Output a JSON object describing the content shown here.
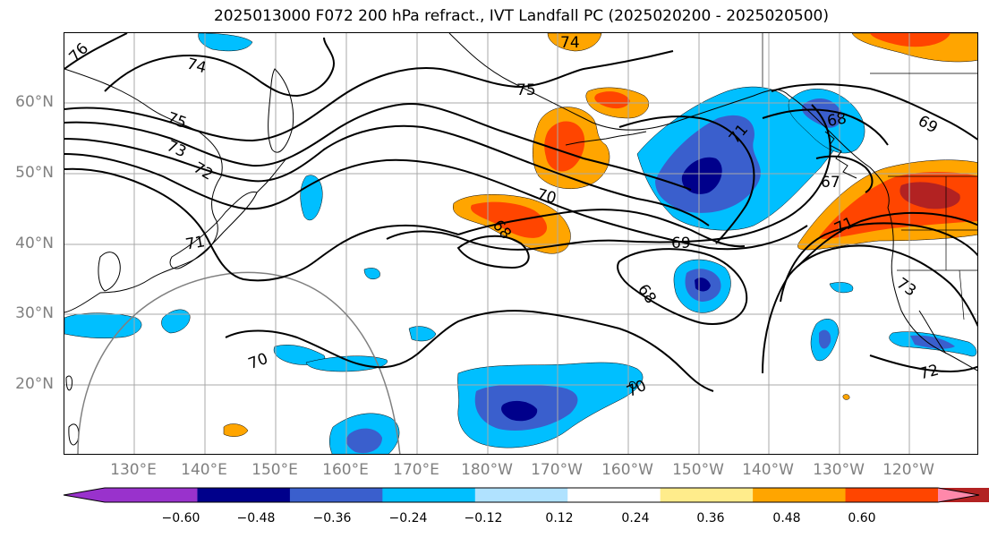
{
  "title": "2025013000 F072 200 hPa refract., IVT Landfall PC (2025020200 - 2025020500)",
  "lat_labels": [
    "60°N",
    "50°N",
    "40°N",
    "30°N",
    "20°N"
  ],
  "lon_labels": [
    "130°E",
    "140°E",
    "150°E",
    "160°E",
    "170°E",
    "180°W",
    "170°W",
    "160°W",
    "150°W",
    "140°W",
    "130°W",
    "120°W"
  ],
  "colorbar": {
    "colors": [
      "#9932cc",
      "#00008b",
      "#3a5fcd",
      "#00bfff",
      "#b0e2ff",
      "#ffffff",
      "#ffec8b",
      "#ffa500",
      "#ff4500",
      "#b22222",
      "#ff88aa"
    ],
    "ticks": [
      "−0.60",
      "−0.48",
      "−0.36",
      "−0.24",
      "−0.12",
      "0.12",
      "0.24",
      "0.36",
      "0.48",
      "0.60"
    ]
  },
  "contour_labels": [
    "76",
    "74",
    "74",
    "75",
    "75",
    "73",
    "72",
    "71",
    "70",
    "70",
    "68",
    "69",
    "68",
    "71",
    "68",
    "69",
    "67",
    "71",
    "73",
    "72",
    "70"
  ],
  "colors": {
    "grid": "#a9a9a9",
    "contour": "#000000",
    "coast": "#000000",
    "axis_text": "#808080"
  }
}
